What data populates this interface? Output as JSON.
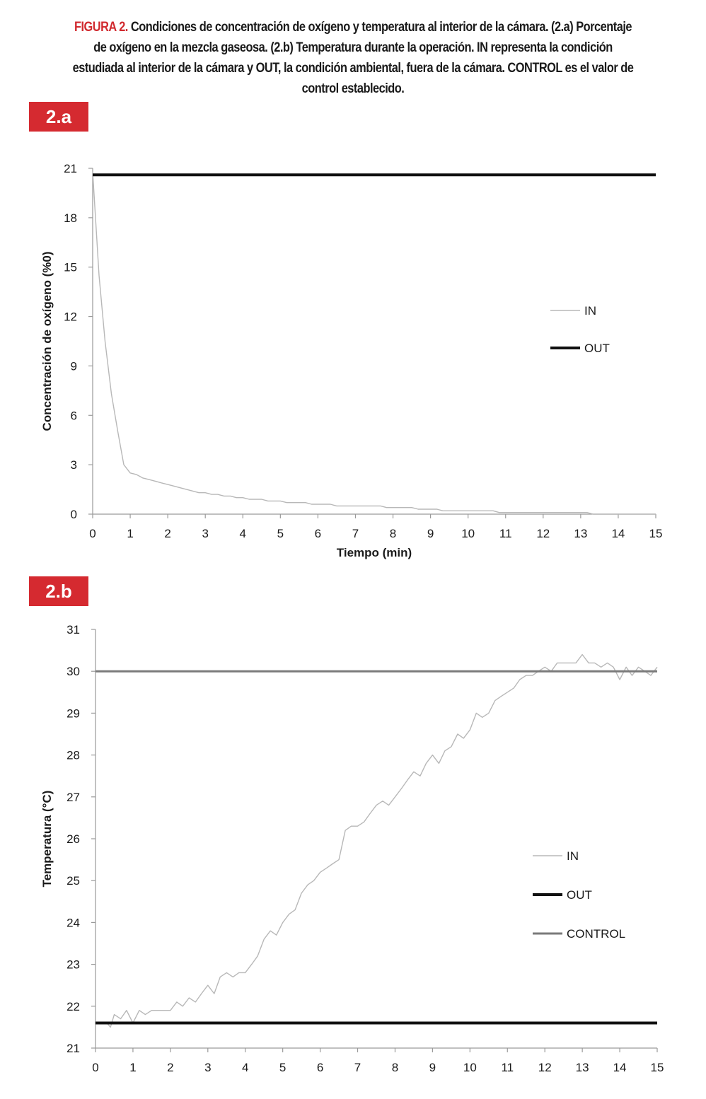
{
  "caption": {
    "lead": "FIGURA 2.",
    "text": "Condiciones de concentración de oxígeno y temperatura al interior de la cámara. (2.a) Porcentaje de oxígeno en la mezcla gaseosa.  (2.b) Temperatura durante la operación. IN representa la condición estudiada al interior de la cámara y OUT, la condición ambiental, fuera de la cámara.  CONTROL es el valor de control establecido."
  },
  "colors": {
    "badge": "#d52a30",
    "in": "#b8b8b8",
    "out": "#111111",
    "control": "#7a7a7a",
    "caption_lead": "#d12a2f"
  },
  "chart_data": [
    {
      "id": "2a",
      "badge": "2.a",
      "type": "line",
      "xlabel": "Tiempo (min)",
      "ylabel": "Concentración de oxígeno (%0)",
      "xlim": [
        0,
        15
      ],
      "ylim": [
        0,
        21
      ],
      "xticks": [
        0,
        1,
        2,
        3,
        4,
        5,
        6,
        7,
        8,
        9,
        10,
        11,
        12,
        13,
        14,
        15
      ],
      "yticks": [
        0,
        3,
        6,
        9,
        12,
        15,
        18,
        21
      ],
      "grid": false,
      "legend_position": "right",
      "series": [
        {
          "name": "IN",
          "color": "#b8b8b8",
          "width": 1.4,
          "x": [
            0,
            0.17,
            0.33,
            0.5,
            0.67,
            0.83,
            1.0,
            1.17,
            1.33,
            1.5,
            1.67,
            1.83,
            2.0,
            2.17,
            2.33,
            2.5,
            2.67,
            2.83,
            3.0,
            3.17,
            3.33,
            3.5,
            3.67,
            3.83,
            4.0,
            4.17,
            4.33,
            4.5,
            4.67,
            4.83,
            5.0,
            5.17,
            5.33,
            5.5,
            5.67,
            5.83,
            6.0,
            6.17,
            6.33,
            6.5,
            6.67,
            6.83,
            7.0,
            7.17,
            7.33,
            7.5,
            7.67,
            7.83,
            8.0,
            8.17,
            8.33,
            8.5,
            8.67,
            8.83,
            9.0,
            9.17,
            9.33,
            9.5,
            9.67,
            9.83,
            10.0,
            10.17,
            10.33,
            10.5,
            10.67,
            10.83,
            11.0,
            11.17,
            11.33,
            11.5,
            11.67,
            11.83,
            12.0,
            12.17,
            12.33,
            12.5,
            12.67,
            12.83,
            13.0,
            13.17,
            13.33,
            13.5,
            13.67,
            13.83,
            14.0,
            14.17,
            14.33,
            14.5,
            14.67,
            14.83,
            15.0
          ],
          "y": [
            20.8,
            14.5,
            10.5,
            7.3,
            5.0,
            3.0,
            2.5,
            2.4,
            2.2,
            2.1,
            2.0,
            1.9,
            1.8,
            1.7,
            1.6,
            1.5,
            1.4,
            1.3,
            1.3,
            1.2,
            1.2,
            1.1,
            1.1,
            1.0,
            1.0,
            0.9,
            0.9,
            0.9,
            0.8,
            0.8,
            0.8,
            0.7,
            0.7,
            0.7,
            0.7,
            0.6,
            0.6,
            0.6,
            0.6,
            0.5,
            0.5,
            0.5,
            0.5,
            0.5,
            0.5,
            0.5,
            0.5,
            0.4,
            0.4,
            0.4,
            0.4,
            0.4,
            0.3,
            0.3,
            0.3,
            0.3,
            0.2,
            0.2,
            0.2,
            0.2,
            0.2,
            0.2,
            0.2,
            0.2,
            0.2,
            0.1,
            0.1,
            0.1,
            0.1,
            0.1,
            0.1,
            0.1,
            0.1,
            0.1,
            0.1,
            0.1,
            0.1,
            0.1,
            0.1,
            0.1,
            0.0,
            0.0,
            0.0,
            0.0,
            0.0,
            0.0,
            0.0,
            0.0,
            0.0,
            0.0,
            0.0
          ]
        },
        {
          "name": "OUT",
          "color": "#111111",
          "width": 4,
          "x": [
            0,
            15
          ],
          "y": [
            20.6,
            20.6
          ]
        }
      ]
    },
    {
      "id": "2b",
      "badge": "2.b",
      "type": "line",
      "xlabel": "",
      "ylabel": "Temperatura (°C)",
      "xlim": [
        0,
        15
      ],
      "ylim": [
        21,
        31
      ],
      "xticks": [
        0,
        1,
        2,
        3,
        4,
        5,
        6,
        7,
        8,
        9,
        10,
        11,
        12,
        13,
        14,
        15
      ],
      "yticks": [
        21,
        22,
        23,
        24,
        25,
        26,
        27,
        28,
        29,
        30,
        31
      ],
      "grid": false,
      "legend_position": "right",
      "series": [
        {
          "name": "IN",
          "color": "#b8b8b8",
          "width": 1.4,
          "x": [
            0.3,
            0.4,
            0.5,
            0.67,
            0.83,
            1.0,
            1.17,
            1.33,
            1.5,
            1.67,
            1.83,
            2.0,
            2.17,
            2.33,
            2.5,
            2.67,
            2.83,
            3.0,
            3.17,
            3.33,
            3.5,
            3.67,
            3.83,
            4.0,
            4.17,
            4.33,
            4.5,
            4.67,
            4.83,
            5.0,
            5.17,
            5.33,
            5.5,
            5.67,
            5.83,
            6.0,
            6.17,
            6.33,
            6.5,
            6.67,
            6.83,
            7.0,
            7.17,
            7.33,
            7.5,
            7.67,
            7.83,
            8.0,
            8.17,
            8.33,
            8.5,
            8.67,
            8.83,
            9.0,
            9.17,
            9.33,
            9.5,
            9.67,
            9.83,
            10.0,
            10.17,
            10.33,
            10.5,
            10.67,
            10.83,
            11.0,
            11.17,
            11.33,
            11.5,
            11.67,
            11.83,
            12.0,
            12.17,
            12.33,
            12.5,
            12.67,
            12.83,
            13.0,
            13.17,
            13.33,
            13.5,
            13.67,
            13.83,
            14.0,
            14.17,
            14.33,
            14.5,
            14.67,
            14.83,
            15.0
          ],
          "y": [
            21.6,
            21.5,
            21.8,
            21.7,
            21.9,
            21.6,
            21.9,
            21.8,
            21.9,
            21.9,
            21.9,
            21.9,
            22.1,
            22.0,
            22.2,
            22.1,
            22.3,
            22.5,
            22.3,
            22.7,
            22.8,
            22.7,
            22.8,
            22.8,
            23.0,
            23.2,
            23.6,
            23.8,
            23.7,
            24.0,
            24.2,
            24.3,
            24.7,
            24.9,
            25.0,
            25.2,
            25.3,
            25.4,
            25.5,
            26.2,
            26.3,
            26.3,
            26.4,
            26.6,
            26.8,
            26.9,
            26.8,
            27.0,
            27.2,
            27.4,
            27.6,
            27.5,
            27.8,
            28.0,
            27.8,
            28.1,
            28.2,
            28.5,
            28.4,
            28.6,
            29.0,
            28.9,
            29.0,
            29.3,
            29.4,
            29.5,
            29.6,
            29.8,
            29.9,
            29.9,
            30.0,
            30.1,
            30.0,
            30.2,
            30.2,
            30.2,
            30.2,
            30.4,
            30.2,
            30.2,
            30.1,
            30.2,
            30.1,
            29.8,
            30.1,
            29.9,
            30.1,
            30.0,
            29.9,
            30.1
          ]
        },
        {
          "name": "OUT",
          "color": "#111111",
          "width": 4,
          "x": [
            0,
            15
          ],
          "y": [
            21.6,
            21.6
          ]
        },
        {
          "name": "CONTROL",
          "color": "#7a7a7a",
          "width": 3,
          "x": [
            0,
            15
          ],
          "y": [
            30.0,
            30.0
          ]
        }
      ]
    }
  ]
}
